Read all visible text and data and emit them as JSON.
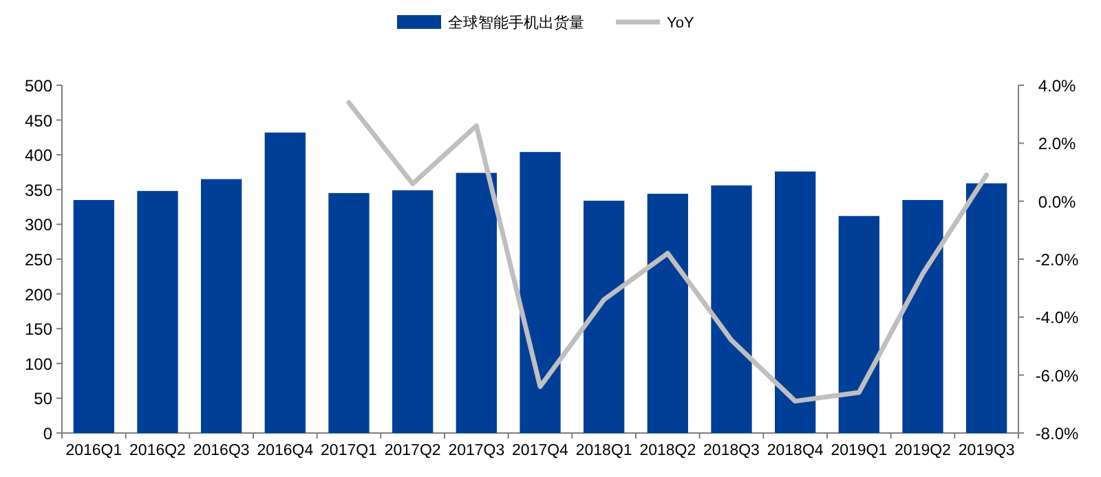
{
  "chart_data": {
    "type": "bar",
    "categories": [
      "2016Q1",
      "2016Q2",
      "2016Q3",
      "2016Q4",
      "2017Q1",
      "2017Q2",
      "2017Q3",
      "2017Q4",
      "2018Q1",
      "2018Q2",
      "2018Q3",
      "2018Q4",
      "2019Q1",
      "2019Q2",
      "2019Q3"
    ],
    "series": [
      {
        "name": "全球智能手机出货量",
        "color": "#003f98",
        "values": [
          335,
          348,
          365,
          432,
          345,
          349,
          374,
          404,
          334,
          344,
          356,
          376,
          312,
          335,
          359
        ]
      },
      {
        "name": "YoY",
        "type": "line",
        "axis": "y2",
        "color": "#bfbfbf",
        "values": [
          null,
          null,
          null,
          null,
          3.4,
          0.6,
          2.6,
          -6.4,
          -3.4,
          -1.8,
          -4.8,
          -6.9,
          -6.6,
          -2.5,
          0.9
        ]
      }
    ],
    "ylim": [
      0,
      500
    ],
    "yticks": [
      0,
      50,
      100,
      150,
      200,
      250,
      300,
      350,
      400,
      450,
      500
    ],
    "y2lim": [
      -8,
      4
    ],
    "y2ticks": [
      {
        "value": -8,
        "label": "-8.0%"
      },
      {
        "value": -6,
        "label": "-6.0%"
      },
      {
        "value": -4,
        "label": "-4.0%"
      },
      {
        "value": -2,
        "label": "-2.0%"
      },
      {
        "value": 0,
        "label": "0.0%"
      },
      {
        "value": 2,
        "label": "2.0%"
      },
      {
        "value": 4,
        "label": "4.0%"
      }
    ],
    "legend": "top",
    "grid": false
  }
}
